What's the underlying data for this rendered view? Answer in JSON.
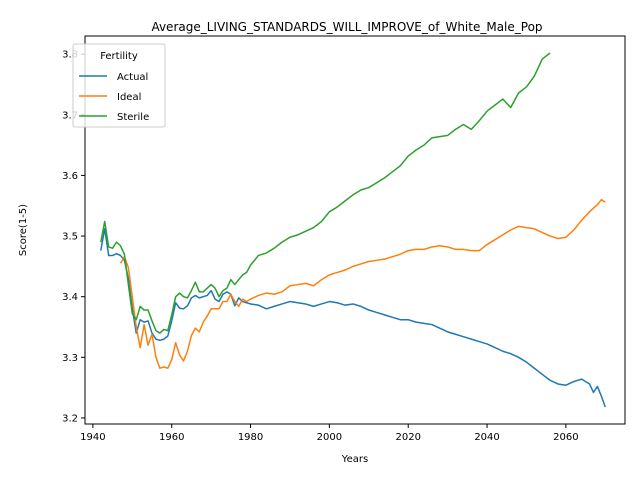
{
  "chart_data": {
    "type": "line",
    "title": "Average_LIVING_STANDARDS_WILL_IMPROVE_of_White_Male_Pop",
    "xlabel": "Years",
    "ylabel": "Score(1-5)",
    "xlim": [
      1938,
      2075
    ],
    "ylim": [
      3.19,
      3.83
    ],
    "xticks": [
      1940,
      1960,
      1980,
      2000,
      2020,
      2040,
      2060
    ],
    "yticks": [
      3.2,
      3.3,
      3.4,
      3.5,
      3.6,
      3.7,
      3.8
    ],
    "grid": false,
    "legend": {
      "title": "Fertility",
      "position": "top-left"
    },
    "series": [
      {
        "name": "Actual",
        "color": "#1f77b4",
        "x": [
          1942,
          1943,
          1944,
          1945,
          1946,
          1947,
          1948,
          1949,
          1950,
          1951,
          1952,
          1953,
          1954,
          1955,
          1956,
          1957,
          1958,
          1959,
          1960,
          1961,
          1962,
          1963,
          1964,
          1965,
          1966,
          1967,
          1968,
          1969,
          1970,
          1971,
          1972,
          1973,
          1974,
          1975,
          1976,
          1977,
          1978,
          1979,
          1980,
          1982,
          1984,
          1986,
          1988,
          1990,
          1992,
          1994,
          1996,
          1998,
          2000,
          2002,
          2004,
          2006,
          2008,
          2010,
          2012,
          2014,
          2016,
          2018,
          2020,
          2022,
          2024,
          2026,
          2028,
          2030,
          2032,
          2034,
          2036,
          2038,
          2040,
          2042,
          2044,
          2046,
          2048,
          2050,
          2052,
          2054,
          2056,
          2058,
          2060,
          2062,
          2064,
          2066,
          2067,
          2068,
          2069,
          2070
        ],
        "values": [
          3.476,
          3.512,
          3.468,
          3.468,
          3.471,
          3.468,
          3.46,
          3.43,
          3.38,
          3.34,
          3.362,
          3.358,
          3.36,
          3.34,
          3.33,
          3.328,
          3.33,
          3.335,
          3.36,
          3.39,
          3.381,
          3.38,
          3.385,
          3.398,
          3.402,
          3.398,
          3.4,
          3.402,
          3.41,
          3.396,
          3.392,
          3.404,
          3.408,
          3.404,
          3.385,
          3.398,
          3.392,
          3.39,
          3.388,
          3.386,
          3.38,
          3.384,
          3.388,
          3.392,
          3.39,
          3.388,
          3.384,
          3.388,
          3.392,
          3.39,
          3.386,
          3.388,
          3.384,
          3.378,
          3.374,
          3.37,
          3.366,
          3.362,
          3.362,
          3.358,
          3.356,
          3.354,
          3.348,
          3.342,
          3.338,
          3.334,
          3.33,
          3.326,
          3.322,
          3.316,
          3.31,
          3.306,
          3.3,
          3.292,
          3.282,
          3.272,
          3.262,
          3.256,
          3.254,
          3.26,
          3.264,
          3.256,
          3.242,
          3.252,
          3.236,
          3.218
        ]
      },
      {
        "name": "Ideal",
        "color": "#ff7f0e",
        "x": [
          1947,
          1948,
          1949,
          1950,
          1951,
          1952,
          1953,
          1954,
          1955,
          1956,
          1957,
          1958,
          1959,
          1960,
          1961,
          1962,
          1963,
          1964,
          1965,
          1966,
          1967,
          1968,
          1969,
          1970,
          1971,
          1972,
          1973,
          1974,
          1975,
          1976,
          1977,
          1978,
          1979,
          1980,
          1982,
          1984,
          1986,
          1988,
          1990,
          1992,
          1994,
          1996,
          1998,
          2000,
          2002,
          2004,
          2006,
          2008,
          2010,
          2012,
          2014,
          2016,
          2018,
          2020,
          2022,
          2024,
          2026,
          2028,
          2030,
          2032,
          2034,
          2036,
          2038,
          2040,
          2042,
          2044,
          2046,
          2048,
          2050,
          2052,
          2054,
          2056,
          2058,
          2060,
          2062,
          2064,
          2066,
          2068,
          2069,
          2070
        ],
        "values": [
          3.455,
          3.466,
          3.448,
          3.4,
          3.35,
          3.316,
          3.354,
          3.32,
          3.338,
          3.3,
          3.282,
          3.284,
          3.282,
          3.296,
          3.324,
          3.304,
          3.294,
          3.31,
          3.336,
          3.348,
          3.342,
          3.358,
          3.368,
          3.38,
          3.38,
          3.38,
          3.392,
          3.392,
          3.404,
          3.392,
          3.384,
          3.396,
          3.392,
          3.396,
          3.402,
          3.406,
          3.404,
          3.408,
          3.418,
          3.42,
          3.422,
          3.418,
          3.428,
          3.436,
          3.44,
          3.444,
          3.45,
          3.454,
          3.458,
          3.46,
          3.462,
          3.466,
          3.47,
          3.476,
          3.478,
          3.478,
          3.482,
          3.484,
          3.482,
          3.478,
          3.478,
          3.476,
          3.476,
          3.486,
          3.494,
          3.502,
          3.51,
          3.516,
          3.514,
          3.512,
          3.506,
          3.5,
          3.496,
          3.498,
          3.51,
          3.526,
          3.54,
          3.552,
          3.56,
          3.556
        ]
      },
      {
        "name": "Sterile",
        "color": "#2ca02c",
        "x": [
          1942,
          1943,
          1944,
          1945,
          1946,
          1947,
          1948,
          1949,
          1950,
          1951,
          1952,
          1953,
          1954,
          1955,
          1956,
          1957,
          1958,
          1959,
          1960,
          1961,
          1962,
          1963,
          1964,
          1965,
          1966,
          1967,
          1968,
          1969,
          1970,
          1971,
          1972,
          1973,
          1974,
          1975,
          1976,
          1977,
          1978,
          1979,
          1980,
          1982,
          1984,
          1986,
          1988,
          1990,
          1992,
          1994,
          1996,
          1998,
          2000,
          2002,
          2004,
          2006,
          2008,
          2010,
          2012,
          2014,
          2016,
          2018,
          2020,
          2022,
          2024,
          2026,
          2028,
          2030,
          2032,
          2034,
          2036,
          2038,
          2040,
          2042,
          2044,
          2046,
          2048,
          2050,
          2052,
          2054,
          2056
        ],
        "values": [
          3.49,
          3.524,
          3.482,
          3.48,
          3.49,
          3.484,
          3.47,
          3.42,
          3.372,
          3.362,
          3.384,
          3.378,
          3.378,
          3.36,
          3.344,
          3.34,
          3.346,
          3.344,
          3.37,
          3.4,
          3.406,
          3.4,
          3.398,
          3.41,
          3.424,
          3.408,
          3.408,
          3.414,
          3.42,
          3.414,
          3.4,
          3.41,
          3.414,
          3.428,
          3.42,
          3.428,
          3.436,
          3.44,
          3.452,
          3.468,
          3.472,
          3.48,
          3.49,
          3.498,
          3.502,
          3.508,
          3.514,
          3.524,
          3.54,
          3.548,
          3.558,
          3.568,
          3.576,
          3.58,
          3.588,
          3.596,
          3.606,
          3.616,
          3.632,
          3.642,
          3.65,
          3.662,
          3.664,
          3.666,
          3.676,
          3.684,
          3.676,
          3.69,
          3.706,
          3.716,
          3.726,
          3.712,
          3.736,
          3.746,
          3.764,
          3.792,
          3.802
        ]
      }
    ]
  }
}
